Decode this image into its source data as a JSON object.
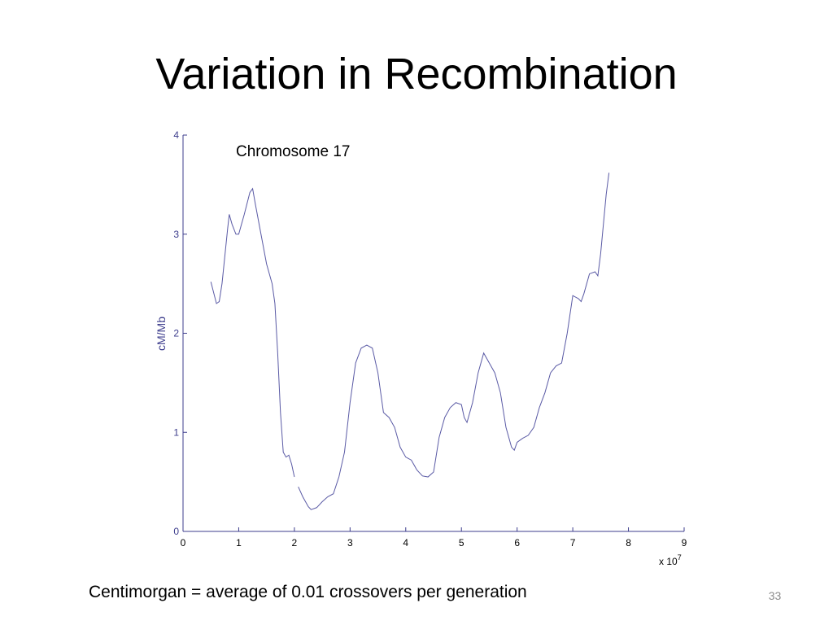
{
  "title": "Variation in Recombination",
  "footer": "Centimorgan = average of 0.01 crossovers per generation",
  "page_number": "33",
  "chart_data": {
    "type": "line",
    "annotation": "Chromosome 17",
    "y_label": "cM/Mb",
    "x_multiplier": {
      "base": "x 10",
      "exponent": "7"
    },
    "xlim": [
      0,
      9
    ],
    "xticks": [
      0,
      1,
      2,
      3,
      4,
      5,
      6,
      7,
      8,
      9
    ],
    "ylim": [
      0,
      4
    ],
    "yticks": [
      0,
      1,
      2,
      3,
      4
    ],
    "axis_color": "#3c3c8c",
    "x": [
      0.5,
      0.6,
      0.65,
      0.7,
      0.8,
      0.83,
      0.88,
      0.95,
      1.0,
      1.1,
      1.2,
      1.25,
      1.3,
      1.4,
      1.5,
      1.6,
      1.65,
      1.7,
      1.75,
      1.8,
      1.85,
      1.9,
      1.95,
      2.0,
      2.03,
      2.07,
      2.15,
      2.25,
      2.3,
      2.4,
      2.5,
      2.6,
      2.7,
      2.8,
      2.9,
      3.0,
      3.1,
      3.2,
      3.3,
      3.4,
      3.5,
      3.6,
      3.7,
      3.8,
      3.9,
      4.0,
      4.1,
      4.2,
      4.3,
      4.4,
      4.5,
      4.6,
      4.7,
      4.8,
      4.9,
      5.0,
      5.05,
      5.1,
      5.2,
      5.3,
      5.4,
      5.5,
      5.6,
      5.7,
      5.8,
      5.9,
      5.95,
      6.0,
      6.1,
      6.2,
      6.3,
      6.4,
      6.5,
      6.6,
      6.7,
      6.8,
      6.9,
      7.0,
      7.1,
      7.15,
      7.2,
      7.3,
      7.4,
      7.45,
      7.5,
      7.6,
      7.65
    ],
    "series": [
      {
        "color": "#5a5aa5",
        "values": [
          2.52,
          2.3,
          2.32,
          2.5,
          3.05,
          3.2,
          3.1,
          3.0,
          3.0,
          3.2,
          3.42,
          3.46,
          3.3,
          3.0,
          2.7,
          2.5,
          2.3,
          1.8,
          1.2,
          0.8,
          0.75,
          0.77,
          0.68,
          0.55,
          null,
          0.45,
          0.35,
          0.25,
          0.22,
          0.24,
          0.3,
          0.35,
          0.38,
          0.55,
          0.8,
          1.3,
          1.7,
          1.85,
          1.88,
          1.85,
          1.6,
          1.2,
          1.15,
          1.05,
          0.85,
          0.75,
          0.72,
          0.62,
          0.56,
          0.55,
          0.6,
          0.95,
          1.15,
          1.25,
          1.3,
          1.28,
          1.15,
          1.1,
          1.3,
          1.6,
          1.8,
          1.7,
          1.6,
          1.4,
          1.05,
          0.85,
          0.82,
          0.9,
          0.94,
          0.97,
          1.05,
          1.25,
          1.4,
          1.6,
          1.67,
          1.7,
          2.0,
          2.38,
          2.35,
          2.32,
          2.4,
          2.6,
          2.62,
          2.58,
          2.8,
          3.4,
          3.62
        ]
      }
    ]
  }
}
